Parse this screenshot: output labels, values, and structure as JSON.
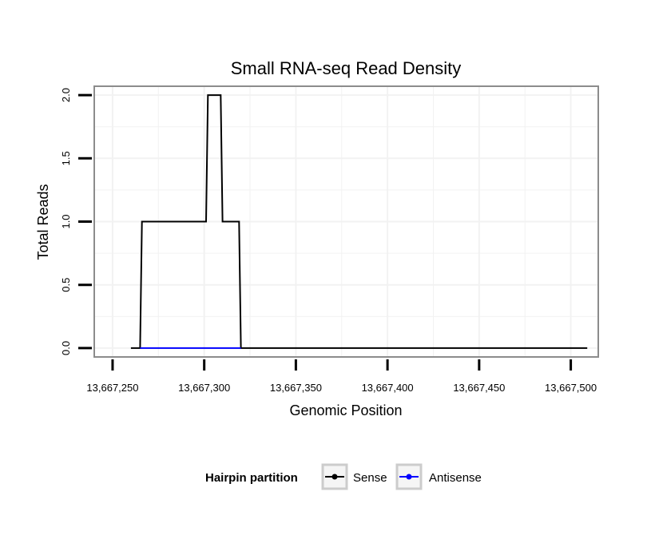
{
  "chart_data": {
    "type": "line",
    "title": "Small RNA-seq Read Density",
    "xlabel": "Genomic Position",
    "ylabel": "Total Reads",
    "xlim": [
      13667240,
      13667515
    ],
    "ylim": [
      -0.07,
      2.07
    ],
    "x_ticks": [
      13667250,
      13667300,
      13667350,
      13667400,
      13667450,
      13667500
    ],
    "x_tick_labels": [
      "13,667,250",
      "13,667,300",
      "13,667,350",
      "13,667,400",
      "13,667,450",
      "13,667,500"
    ],
    "y_ticks": [
      0,
      0.5,
      1,
      1.5,
      2
    ],
    "y_tick_labels": [
      "0.0",
      "0.5",
      "1.0",
      "1.5",
      "2.0"
    ],
    "grid": true,
    "legend": {
      "title": "Hairpin partition",
      "position": "bottom",
      "entries": [
        {
          "name": "Sense",
          "color": "#000000"
        },
        {
          "name": "Antisense",
          "color": "#0000ff"
        }
      ]
    },
    "series": [
      {
        "name": "Sense",
        "color": "#000000",
        "x": [
          13667260,
          13667265,
          13667266,
          13667301,
          13667302,
          13667309,
          13667310,
          13667319,
          13667320,
          13667509
        ],
        "y": [
          0,
          0,
          1,
          1,
          2,
          2,
          1,
          1,
          0,
          0
        ]
      },
      {
        "name": "Antisense",
        "color": "#0000ff",
        "x": [
          13667265,
          13667320
        ],
        "y": [
          0,
          0
        ]
      }
    ]
  }
}
